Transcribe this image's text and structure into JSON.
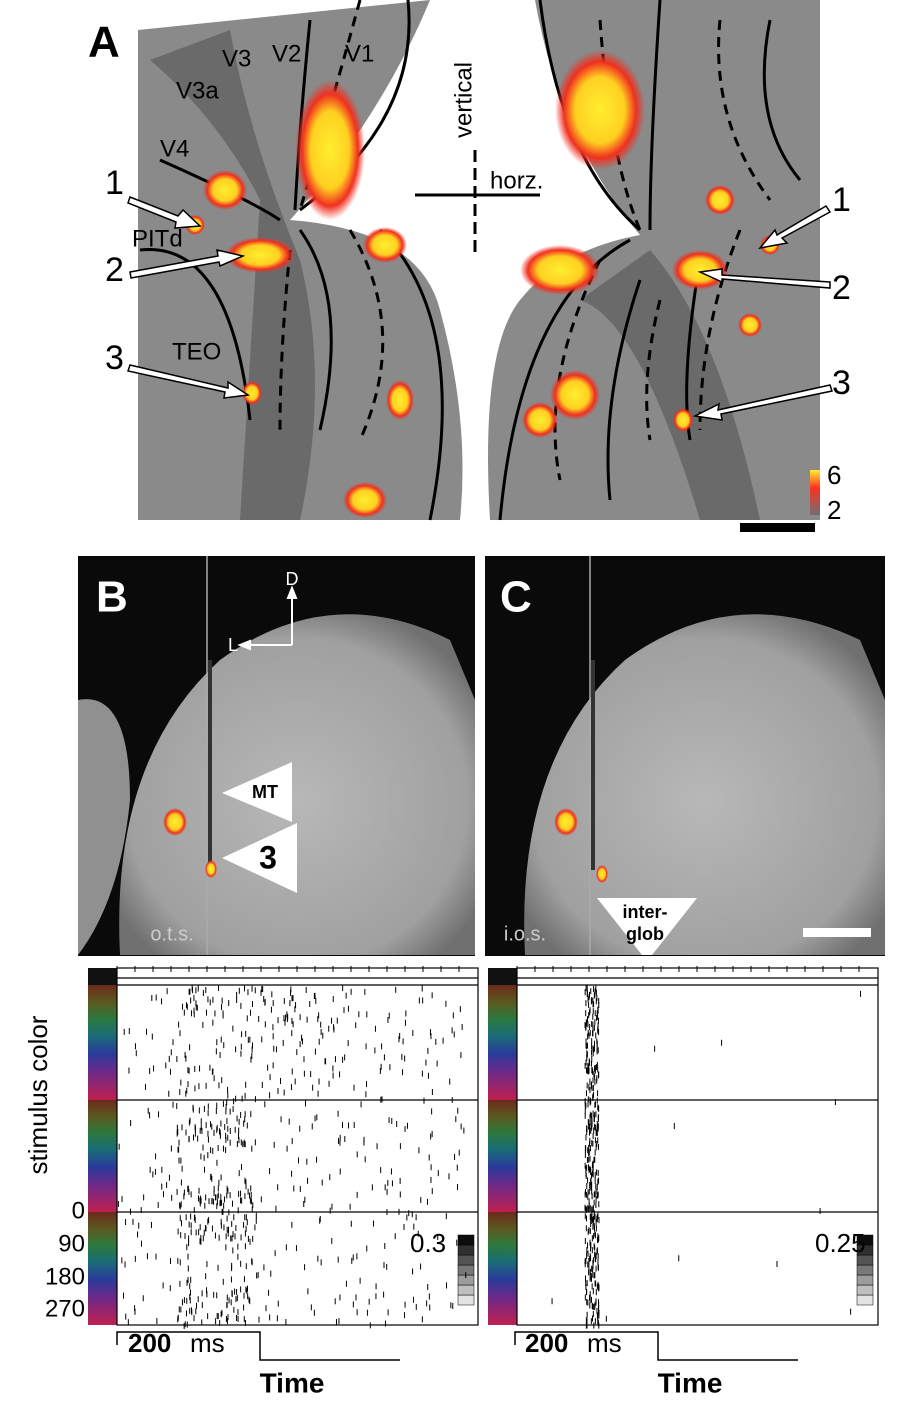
{
  "panel_a": {
    "label": "A",
    "areas": [
      "V3",
      "V2",
      "V1",
      "V3a",
      "V4"
    ],
    "vertical": "vertical",
    "horizontal": "horz.",
    "left_markers": [
      "1",
      "2",
      "3"
    ],
    "right_markers": [
      "1",
      "2",
      "3"
    ],
    "region_labels": [
      "PITd",
      "TEO"
    ],
    "colorbar": [
      "6",
      "2"
    ]
  },
  "panel_b": {
    "label": "B",
    "dorsal": "D",
    "lateral": "L",
    "mt": "MT",
    "marker": "3",
    "sulcus": "o.t.s."
  },
  "panel_c": {
    "label": "C",
    "sulcus": "i.o.s.",
    "interglob": [
      "inter-",
      "glob"
    ]
  },
  "rasters": {
    "y_label": "stimulus color",
    "angles": [
      "0",
      "90",
      "180",
      "270"
    ],
    "scale_left": "0.3",
    "scale_right": "0.25",
    "time_bar": [
      "200",
      "ms"
    ],
    "x_label": "Time"
  }
}
